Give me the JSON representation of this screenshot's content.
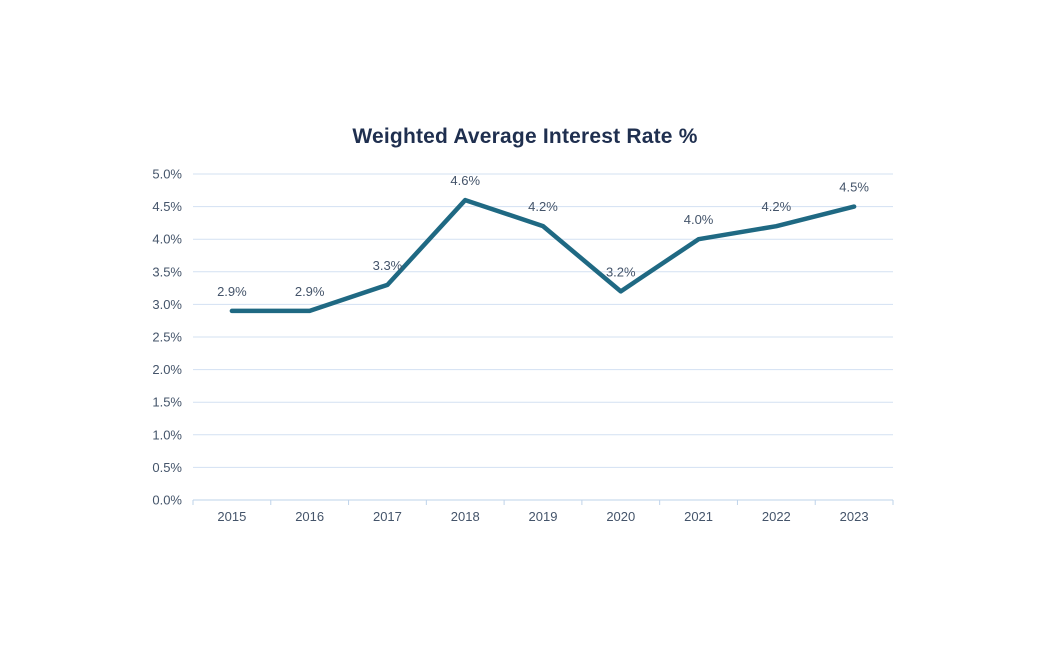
{
  "chart_data": {
    "type": "line",
    "title": "Weighted Average Interest Rate %",
    "categories": [
      "2015",
      "2016",
      "2017",
      "2018",
      "2019",
      "2020",
      "2021",
      "2022",
      "2023"
    ],
    "series": [
      {
        "name": "Weighted Average Interest Rate %",
        "values": [
          2.9,
          2.9,
          3.3,
          4.6,
          4.2,
          3.2,
          4.0,
          4.2,
          4.5
        ],
        "data_labels": [
          "2.9%",
          "2.9%",
          "3.3%",
          "4.6%",
          "4.2%",
          "3.2%",
          "4.0%",
          "4.2%",
          "4.5%"
        ]
      }
    ],
    "y_axis": {
      "min": 0,
      "max": 5,
      "tick_step": 0.5,
      "tick_labels": [
        "0.0%",
        "0.5%",
        "1.0%",
        "1.5%",
        "2.0%",
        "2.5%",
        "3.0%",
        "3.5%",
        "4.0%",
        "4.5%",
        "5.0%"
      ]
    },
    "grid": true,
    "legend": "none",
    "colors": {
      "line": "#1f6983",
      "title_text": "#1f2f4f",
      "axis_text": "#44546a",
      "data_label_text": "#44546a",
      "gridline": "#d3e1f2",
      "axis_line": "#bed3ea",
      "background": "#ffffff"
    }
  }
}
